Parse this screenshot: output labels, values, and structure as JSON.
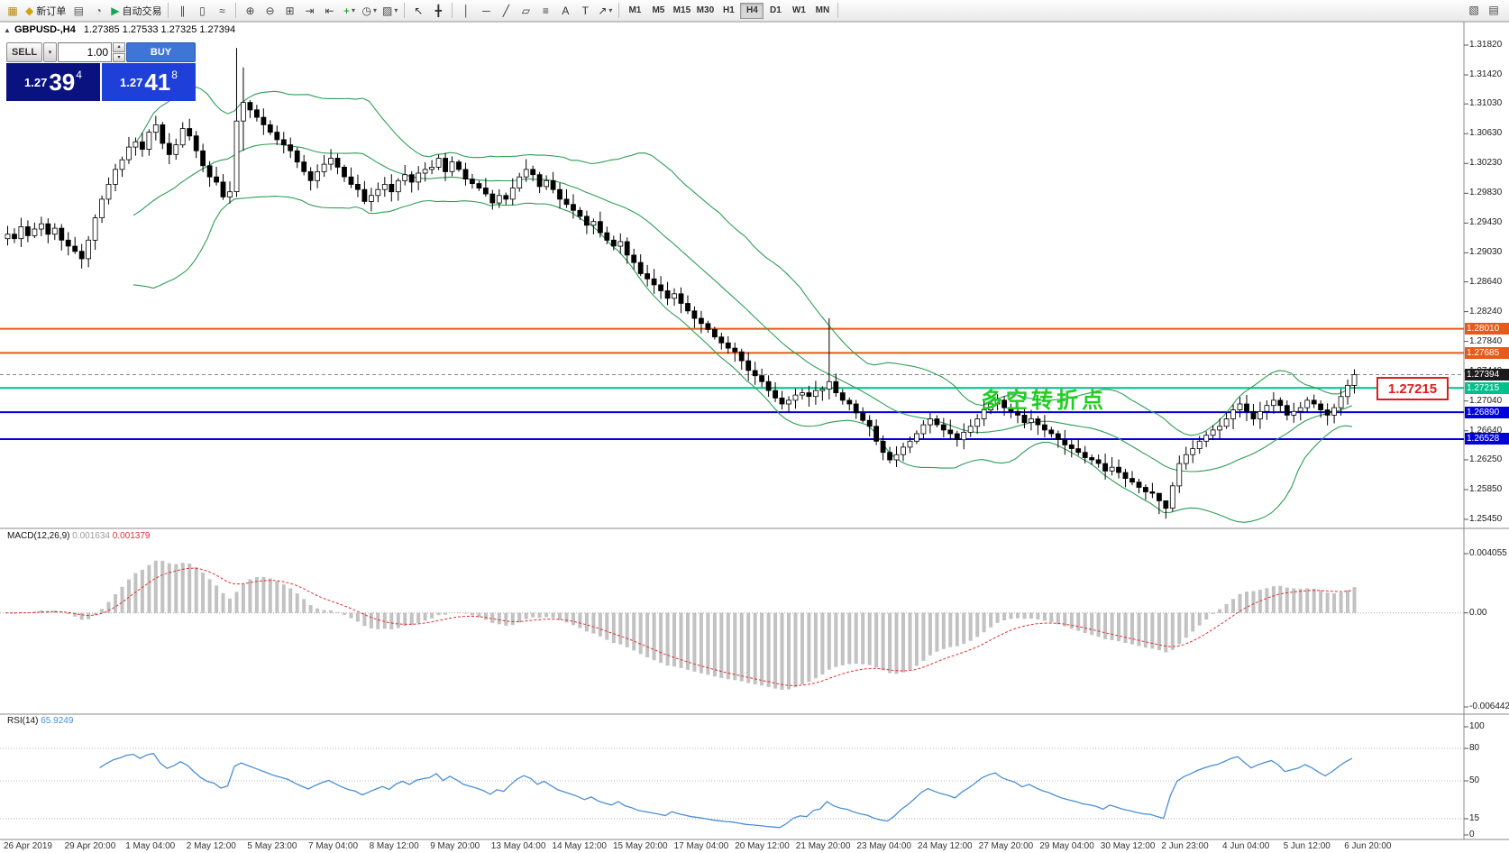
{
  "chart_header": {
    "symbol": "GBPUSD-,H4",
    "ohlc": "1.27385 1.27533 1.27325 1.27394"
  },
  "trade_panel": {
    "collapse_icon": "▲",
    "sell_label": "SELL",
    "buy_label": "BUY",
    "lot_value": "1.00",
    "caret_down": "▾",
    "spin_up": "▴",
    "spin_down": "▾",
    "sell_price_big": "1.27",
    "sell_price_mid": "39",
    "sell_price_sup": "4",
    "buy_price_big": "1.27",
    "buy_price_mid": "41",
    "buy_price_sup": "8"
  },
  "annotations": {
    "turning_point_text": "多空转折点",
    "turning_point_color": "#1fce1f",
    "price_callout": "1.27215",
    "callout_color": "#e01b1b"
  },
  "colors": {
    "sell_box_bg": "#0a1280",
    "buy_box_bg": "#1e40d8",
    "buy_button_bg": "#3f76d6",
    "bollinger": "#2e9e57",
    "candle_up": "#ffffff",
    "candle_down": "#000000",
    "candle_border": "#000000",
    "current_price_bg": "#1b1b1b",
    "macd_hist": "#c2c2c2",
    "macd_signal": "#e03131",
    "rsi_line": "#4a8fd4",
    "axis_line": "#8a8a8a"
  },
  "timeframes": {
    "items": [
      "M1",
      "M5",
      "M15",
      "M30",
      "H1",
      "H4",
      "D1",
      "W1",
      "MN"
    ],
    "active": "H4"
  },
  "toolbar": {
    "caret_glyph": "▾",
    "items": [
      {
        "t": "icon",
        "name": "app-logo-icon",
        "g": "▦",
        "c": "#b8860b"
      },
      {
        "t": "labeled",
        "name": "new-order-button",
        "g": "◆",
        "c": "#d4a017",
        "label": "新订单"
      },
      {
        "t": "icon",
        "name": "market-watch-icon",
        "g": "▤",
        "c": "#5a5a5a"
      },
      {
        "t": "icon",
        "name": "navigator-icon",
        "g": "◔",
        "c": "#5a5a5a"
      },
      {
        "t": "labeled",
        "name": "autotrading-button",
        "g": "▶",
        "c": "#18a558",
        "label": "自动交易"
      },
      {
        "t": "sep"
      },
      {
        "t": "icon",
        "name": "bar-chart-icon",
        "g": "∥",
        "c": "#444444"
      },
      {
        "t": "icon",
        "name": "candlestick-chart-icon",
        "g": "▯",
        "c": "#444444"
      },
      {
        "t": "icon",
        "name": "line-chart-icon",
        "g": "≈",
        "c": "#444444"
      },
      {
        "t": "sep"
      },
      {
        "t": "icon",
        "name": "zoom-in-icon",
        "g": "⊕",
        "c": "#444444"
      },
      {
        "t": "icon",
        "name": "zoom-out-icon",
        "g": "⊖",
        "c": "#444444"
      },
      {
        "t": "icon",
        "name": "tile-windows-icon",
        "g": "⊞",
        "c": "#444444"
      },
      {
        "t": "icon",
        "name": "auto-scroll-icon",
        "g": "⇥",
        "c": "#444444"
      },
      {
        "t": "icon",
        "name": "chart-shift-icon",
        "g": "⇤",
        "c": "#444444"
      },
      {
        "t": "iconc",
        "name": "indicators-button",
        "g": "+",
        "c": "#0a8f0a"
      },
      {
        "t": "iconc",
        "name": "periods-button",
        "g": "◷",
        "c": "#444444"
      },
      {
        "t": "iconc",
        "name": "templates-button",
        "g": "▨",
        "c": "#444444"
      },
      {
        "t": "sep"
      },
      {
        "t": "icon",
        "name": "cursor-tool-icon",
        "g": "↖",
        "c": "#333333"
      },
      {
        "t": "icon",
        "name": "crosshair-tool-icon",
        "g": "╋",
        "c": "#333333"
      },
      {
        "t": "sep"
      },
      {
        "t": "icon",
        "name": "vertical-line-tool-icon",
        "g": "│",
        "c": "#333333"
      },
      {
        "t": "icon",
        "name": "horizontal-line-tool-icon",
        "g": "─",
        "c": "#333333"
      },
      {
        "t": "icon",
        "name": "trendline-tool-icon",
        "g": "╱",
        "c": "#333333"
      },
      {
        "t": "icon",
        "name": "channel-tool-icon",
        "g": "▱",
        "c": "#333333"
      },
      {
        "t": "icon",
        "name": "fibonacci-tool-icon",
        "g": "≡",
        "c": "#333333"
      },
      {
        "t": "icon",
        "name": "text-tool-icon",
        "g": "A",
        "c": "#333333"
      },
      {
        "t": "icon",
        "name": "label-tool-icon",
        "g": "T",
        "c": "#333333"
      },
      {
        "t": "iconc",
        "name": "arrows-tool-icon",
        "g": "↗",
        "c": "#333333"
      },
      {
        "t": "sep"
      },
      {
        "t": "tf"
      },
      {
        "t": "sep"
      }
    ],
    "right_items": [
      {
        "name": "toolbar-extra-1-icon",
        "g": "▧"
      },
      {
        "name": "toolbar-extra-2-icon",
        "g": "▤"
      }
    ]
  },
  "chart_data": {
    "type": "candlestick",
    "symbol": "GBPUSD",
    "timeframe": "H4",
    "closes": [
      1.2928,
      1.2922,
      1.2938,
      1.2926,
      1.2935,
      1.2942,
      1.2928,
      1.2936,
      1.292,
      1.2912,
      1.2905,
      1.2895,
      1.292,
      1.295,
      1.2975,
      1.2995,
      1.3015,
      1.3028,
      1.3045,
      1.3052,
      1.3042,
      1.3065,
      1.3075,
      1.305,
      1.3035,
      1.3048,
      1.307,
      1.306,
      1.304,
      1.302,
      1.3005,
      1.2998,
      1.2978,
      1.2985,
      1.308,
      1.3105,
      1.3095,
      1.3085,
      1.3075,
      1.3065,
      1.3055,
      1.3048,
      1.304,
      1.3025,
      1.3012,
      1.3,
      1.3012,
      1.3022,
      1.303,
      1.3018,
      1.3005,
      1.2995,
      1.2988,
      1.2972,
      1.298,
      1.2988,
      1.2995,
      1.2985,
      1.3,
      1.3008,
      1.2998,
      1.301,
      1.3015,
      1.3018,
      1.303,
      1.3012,
      1.3025,
      1.3015,
      1.3002,
      1.2996,
      1.299,
      1.2982,
      1.297,
      1.298,
      1.2975,
      1.299,
      1.3005,
      1.3015,
      1.3008,
      1.2992,
      1.3,
      1.2988,
      1.2975,
      1.2968,
      1.296,
      1.2952,
      1.294,
      1.2945,
      1.293,
      1.292,
      1.2912,
      1.2918,
      1.29,
      1.289,
      1.2875,
      1.2868,
      1.286,
      1.2852,
      1.2842,
      1.2848,
      1.2835,
      1.2825,
      1.2815,
      1.2808,
      1.28,
      1.279,
      1.2782,
      1.2775,
      1.277,
      1.2758,
      1.2745,
      1.2738,
      1.273,
      1.2718,
      1.2708,
      1.27,
      1.2705,
      1.2712,
      1.2715,
      1.271,
      1.2718,
      1.272,
      1.273,
      1.2715,
      1.2705,
      1.27,
      1.2688,
      1.2678,
      1.267,
      1.265,
      1.2635,
      1.2625,
      1.2632,
      1.2642,
      1.265,
      1.266,
      1.2672,
      1.268,
      1.2672,
      1.2665,
      1.266,
      1.2652,
      1.2662,
      1.267,
      1.268,
      1.2692,
      1.27,
      1.2705,
      1.2695,
      1.269,
      1.2685,
      1.2675,
      1.268,
      1.2672,
      1.2665,
      1.266,
      1.2652,
      1.2645,
      1.264,
      1.2635,
      1.2628,
      1.2625,
      1.262,
      1.261,
      1.2615,
      1.2608,
      1.26,
      1.2595,
      1.2588,
      1.2582,
      1.258,
      1.257,
      1.256,
      1.259,
      1.262,
      1.2632,
      1.264,
      1.265,
      1.2658,
      1.2665,
      1.267,
      1.268,
      1.2692,
      1.27,
      1.269,
      1.268,
      1.269,
      1.2698,
      1.2705,
      1.2698,
      1.2685,
      1.269,
      1.2695,
      1.2705,
      1.27,
      1.2692,
      1.2685,
      1.2695,
      1.271,
      1.2725,
      1.27394
    ],
    "hl_overrides": {
      "34": [
        1.3178,
        1.2978
      ],
      "35": [
        1.3152,
        1.304
      ],
      "122": [
        1.2815,
        1.2706
      ],
      "171": [
        1.2578,
        1.2552
      ],
      "172": [
        1.2568,
        1.2546
      ]
    },
    "indicators": {
      "bollinger": {
        "period": 20,
        "deviation": 2
      },
      "macd": {
        "label": "MACD(12,26,9)",
        "fast": 12,
        "slow": 26,
        "signal": 9,
        "value_main": "0.001634",
        "value_signal": "0.001379",
        "axis_max": 0.004055,
        "axis_min": -0.006442,
        "axis_labels": [
          "0.004055",
          "0.00",
          "-0.006442"
        ]
      },
      "rsi": {
        "label": "RSI(14)",
        "period": 14,
        "value": "65.9249",
        "levels": [
          80,
          50,
          15
        ],
        "axis_labels": [
          "100",
          "80",
          "50",
          "15",
          "0"
        ]
      }
    },
    "hlines": [
      {
        "price": 1.2801,
        "label": "1.28010",
        "color": "#e85a17",
        "width": 2
      },
      {
        "price": 1.27685,
        "label": "1.27685",
        "color": "#e85a17",
        "width": 2
      },
      {
        "price": 1.27215,
        "label": "1.27215",
        "color": "#00c08b",
        "width": 2
      },
      {
        "price": 1.2689,
        "label": "1.26890",
        "color": "#0000dd",
        "width": 2
      },
      {
        "price": 1.26528,
        "label": "1.26528",
        "color": "#0000dd",
        "width": 2
      }
    ],
    "current_price": {
      "price": 1.27394,
      "label": "1.27394"
    },
    "y_axis": {
      "max": 1.3182,
      "min": 1.2545,
      "labels": [
        "1.31820",
        "1.31420",
        "1.31030",
        "1.30630",
        "1.30230",
        "1.29830",
        "1.29430",
        "1.29030",
        "1.28640",
        "1.28240",
        "1.27840",
        "1.27440",
        "1.27040",
        "1.26640",
        "1.26250",
        "1.25850",
        "1.25450"
      ]
    },
    "x_axis": {
      "labels": [
        "26 Apr 2019",
        "29 Apr 20:00",
        "1 May 04:00",
        "2 May 12:00",
        "5 May 23:00",
        "7 May 04:00",
        "8 May 12:00",
        "9 May 20:00",
        "13 May 04:00",
        "14 May 12:00",
        "15 May 20:00",
        "17 May 04:00",
        "20 May 12:00",
        "21 May 20:00",
        "23 May 04:00",
        "24 May 12:00",
        "27 May 20:00",
        "29 May 04:00",
        "30 May 12:00",
        "2 Jun 23:00",
        "4 Jun 04:00",
        "5 Jun 12:00",
        "6 Jun 20:00"
      ]
    }
  }
}
